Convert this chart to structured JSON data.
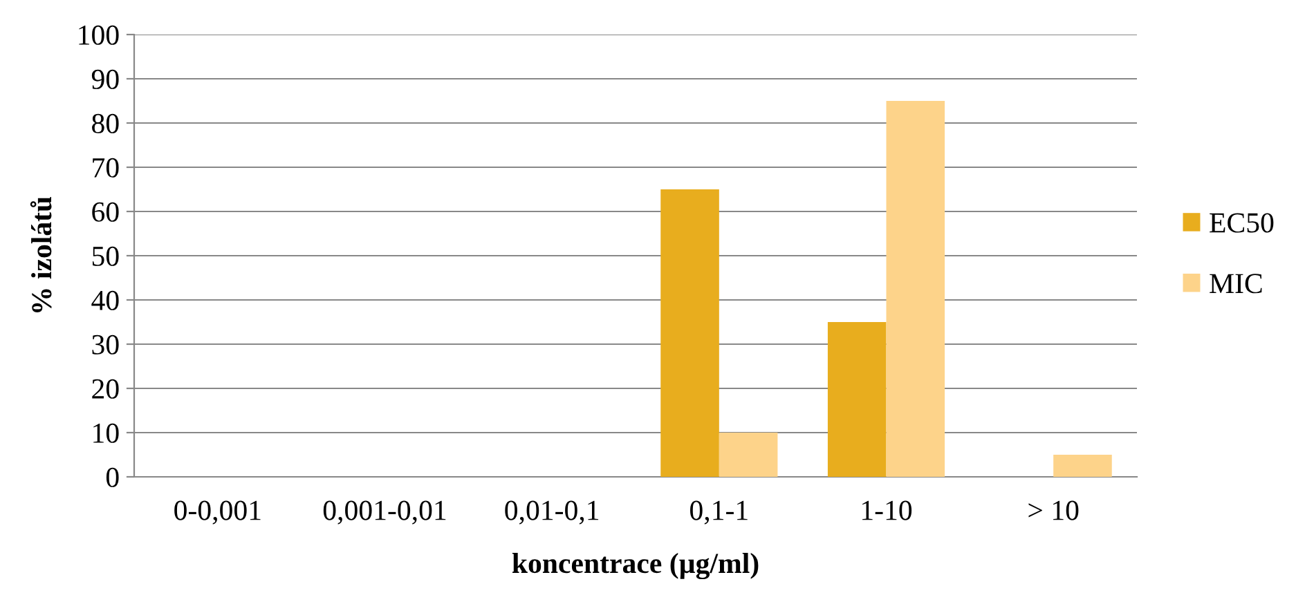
{
  "chart_data": {
    "type": "bar",
    "xlabel": "koncentrace (µg/ml)",
    "ylabel": "% izolátů",
    "categories": [
      "0-0,001",
      "0,001-0,01",
      "0,01-0,1",
      "0,1-1",
      "1-10",
      "> 10"
    ],
    "series": [
      {
        "name": "EC50",
        "color": "#e8ad1e",
        "values": [
          0,
          0,
          0,
          65,
          35,
          0
        ]
      },
      {
        "name": "MIC",
        "color": "#fdd38a",
        "values": [
          0,
          0,
          0,
          10,
          85,
          5
        ]
      }
    ],
    "ylim": [
      0,
      100
    ],
    "yticks": [
      0,
      10,
      20,
      30,
      40,
      50,
      60,
      70,
      80,
      90,
      100
    ],
    "grid": "y",
    "legend": "right"
  }
}
